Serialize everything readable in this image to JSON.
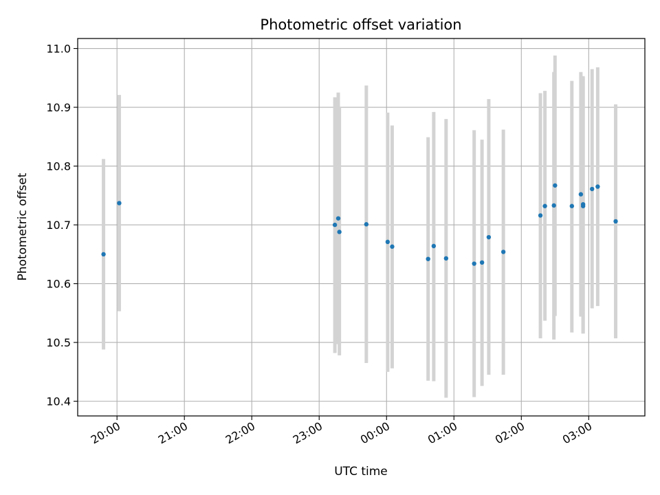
{
  "chart_data": {
    "type": "scatter",
    "title": "Photometric offset variation",
    "xlabel": "UTC time",
    "ylabel": "Photometric offset",
    "x_axis": {
      "kind": "time",
      "start": "19:25",
      "end": "03:50",
      "ticks": [
        "20:00",
        "21:00",
        "22:00",
        "23:00",
        "00:00",
        "01:00",
        "02:00",
        "03:00"
      ]
    },
    "ylim": [
      10.375,
      11.017
    ],
    "yticks": [
      10.4,
      10.5,
      10.6,
      10.7,
      10.8,
      10.9,
      11.0
    ],
    "grid": true,
    "colors": {
      "points": "#1f77b4",
      "errorbars": "#d3d3d3",
      "grid": "#b0b0b0"
    },
    "points": [
      {
        "x": "19:48",
        "y": 10.65,
        "ylow": 10.488,
        "yhigh": 10.812
      },
      {
        "x": "20:02",
        "y": 10.737,
        "ylow": 10.553,
        "yhigh": 10.921
      },
      {
        "x": "23:14",
        "y": 10.7,
        "ylow": 10.482,
        "yhigh": 10.917
      },
      {
        "x": "23:17",
        "y": 10.711,
        "ylow": 10.497,
        "yhigh": 10.925
      },
      {
        "x": "23:18",
        "y": 10.688,
        "ylow": 10.478,
        "yhigh": 10.9
      },
      {
        "x": "23:42",
        "y": 10.701,
        "ylow": 10.465,
        "yhigh": 10.937
      },
      {
        "x": "00:01",
        "y": 10.671,
        "ylow": 10.45,
        "yhigh": 10.891
      },
      {
        "x": "00:05",
        "y": 10.663,
        "ylow": 10.456,
        "yhigh": 10.869
      },
      {
        "x": "00:37",
        "y": 10.642,
        "ylow": 10.435,
        "yhigh": 10.849
      },
      {
        "x": "00:42",
        "y": 10.664,
        "ylow": 10.434,
        "yhigh": 10.892
      },
      {
        "x": "00:53",
        "y": 10.643,
        "ylow": 10.406,
        "yhigh": 10.88
      },
      {
        "x": "01:18",
        "y": 10.634,
        "ylow": 10.407,
        "yhigh": 10.861
      },
      {
        "x": "01:25",
        "y": 10.636,
        "ylow": 10.426,
        "yhigh": 10.845
      },
      {
        "x": "01:31",
        "y": 10.679,
        "ylow": 10.445,
        "yhigh": 10.914
      },
      {
        "x": "01:44",
        "y": 10.654,
        "ylow": 10.445,
        "yhigh": 10.862
      },
      {
        "x": "02:17",
        "y": 10.716,
        "ylow": 10.507,
        "yhigh": 10.924
      },
      {
        "x": "02:21",
        "y": 10.732,
        "ylow": 10.537,
        "yhigh": 10.928
      },
      {
        "x": "02:29",
        "y": 10.733,
        "ylow": 10.505,
        "yhigh": 10.96
      },
      {
        "x": "02:30",
        "y": 10.767,
        "ylow": 10.545,
        "yhigh": 10.988
      },
      {
        "x": "02:45",
        "y": 10.732,
        "ylow": 10.517,
        "yhigh": 10.945
      },
      {
        "x": "02:53",
        "y": 10.752,
        "ylow": 10.544,
        "yhigh": 10.96
      },
      {
        "x": "02:55",
        "y": 10.735,
        "ylow": 10.516,
        "yhigh": 10.953
      },
      {
        "x": "02:55",
        "y": 10.732,
        "ylow": 10.515,
        "yhigh": 10.95
      },
      {
        "x": "03:03",
        "y": 10.761,
        "ylow": 10.558,
        "yhigh": 10.965
      },
      {
        "x": "03:08",
        "y": 10.765,
        "ylow": 10.562,
        "yhigh": 10.968
      },
      {
        "x": "03:24",
        "y": 10.706,
        "ylow": 10.507,
        "yhigh": 10.905
      }
    ]
  }
}
